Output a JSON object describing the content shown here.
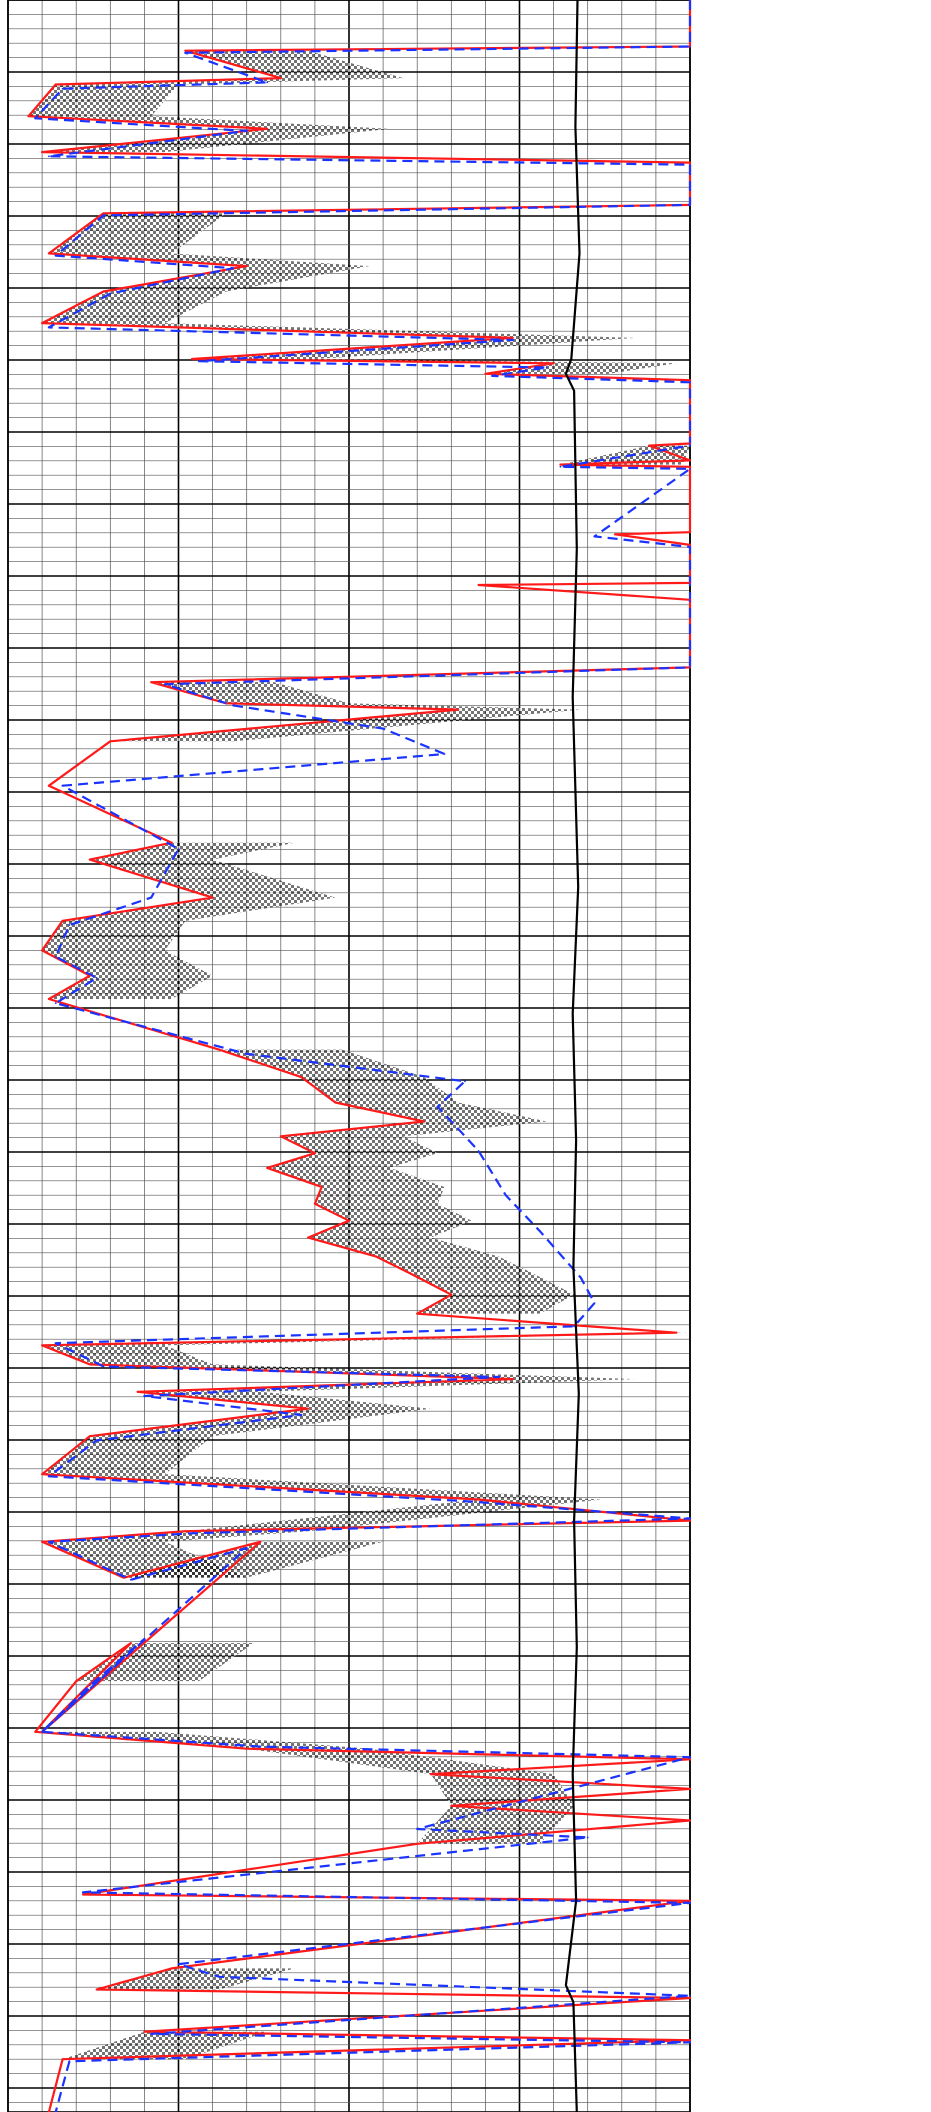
{
  "chart_data": {
    "type": "line",
    "grid": true,
    "x_scale": "linear",
    "colors": {
      "series_red": "#ff1a1a",
      "series_blue": "#1a33ff",
      "reference_curve": "#000000",
      "crossover_fill": "#808080",
      "grid_major": "#000000",
      "grid_minor": "#555555"
    },
    "series": [
      {
        "style": "solid",
        "color": "#ff1a1a",
        "points": [
          [
            1.0,
            0.0
          ],
          [
            1.0,
            0.022
          ],
          [
            0.26,
            0.024
          ],
          [
            0.4,
            0.037
          ],
          [
            0.07,
            0.04
          ],
          [
            0.03,
            0.055
          ],
          [
            0.38,
            0.061
          ],
          [
            0.05,
            0.072
          ],
          [
            1.0,
            0.077
          ],
          [
            1.0,
            0.097
          ],
          [
            0.14,
            0.101
          ],
          [
            0.06,
            0.12
          ],
          [
            0.35,
            0.126
          ],
          [
            0.14,
            0.138
          ],
          [
            0.05,
            0.153
          ],
          [
            0.74,
            0.16
          ],
          [
            0.27,
            0.17
          ],
          [
            0.8,
            0.172
          ],
          [
            0.7,
            0.177
          ],
          [
            1.0,
            0.18
          ],
          [
            1.0,
            0.21
          ],
          [
            0.94,
            0.211
          ],
          [
            1.0,
            0.218
          ],
          [
            0.81,
            0.22
          ],
          [
            1.0,
            0.221
          ],
          [
            1.0,
            0.252
          ],
          [
            0.89,
            0.253
          ],
          [
            1.0,
            0.258
          ],
          [
            1.0,
            0.276
          ],
          [
            0.69,
            0.277
          ],
          [
            1.0,
            0.284
          ],
          [
            1.0,
            0.316
          ],
          [
            0.21,
            0.323
          ],
          [
            0.32,
            0.333
          ],
          [
            0.66,
            0.336
          ],
          [
            0.15,
            0.351
          ],
          [
            0.06,
            0.372
          ],
          [
            0.24,
            0.399
          ],
          [
            0.12,
            0.407
          ],
          [
            0.3,
            0.425
          ],
          [
            0.08,
            0.436
          ],
          [
            0.05,
            0.45
          ],
          [
            0.12,
            0.462
          ],
          [
            0.06,
            0.473
          ],
          [
            0.31,
            0.497
          ],
          [
            0.43,
            0.51
          ],
          [
            0.48,
            0.522
          ],
          [
            0.61,
            0.531
          ],
          [
            0.4,
            0.538
          ],
          [
            0.45,
            0.546
          ],
          [
            0.38,
            0.553
          ],
          [
            0.46,
            0.562
          ],
          [
            0.45,
            0.57
          ],
          [
            0.5,
            0.578
          ],
          [
            0.44,
            0.586
          ],
          [
            0.54,
            0.595
          ],
          [
            0.59,
            0.603
          ],
          [
            0.65,
            0.613
          ],
          [
            0.6,
            0.622
          ],
          [
            0.98,
            0.631
          ],
          [
            0.05,
            0.637
          ],
          [
            0.12,
            0.646
          ],
          [
            0.74,
            0.653
          ],
          [
            0.19,
            0.659
          ],
          [
            0.44,
            0.667
          ],
          [
            0.12,
            0.68
          ],
          [
            0.05,
            0.698
          ],
          [
            0.69,
            0.71
          ],
          [
            1.0,
            0.72
          ],
          [
            0.26,
            0.725
          ],
          [
            0.05,
            0.73
          ],
          [
            0.17,
            0.747
          ],
          [
            0.37,
            0.73
          ],
          [
            0.05,
            0.82
          ],
          [
            0.18,
            0.778
          ],
          [
            0.1,
            0.796
          ],
          [
            0.04,
            0.82
          ],
          [
            0.35,
            0.828
          ],
          [
            1.0,
            0.833
          ],
          [
            0.62,
            0.84
          ],
          [
            1.0,
            0.847
          ],
          [
            0.65,
            0.855
          ],
          [
            1.0,
            0.862
          ],
          [
            0.6,
            0.873
          ],
          [
            0.11,
            0.897
          ],
          [
            1.0,
            0.9
          ],
          [
            0.24,
            0.932
          ],
          [
            0.13,
            0.942
          ],
          [
            1.0,
            0.946
          ],
          [
            0.2,
            0.962
          ],
          [
            1.0,
            0.966
          ],
          [
            0.08,
            0.975
          ],
          [
            0.06,
            1.0
          ]
        ]
      },
      {
        "style": "dashed",
        "color": "#1a33ff",
        "points": [
          [
            1.0,
            0.0
          ],
          [
            1.0,
            0.022
          ],
          [
            0.26,
            0.025
          ],
          [
            0.38,
            0.039
          ],
          [
            0.08,
            0.042
          ],
          [
            0.04,
            0.056
          ],
          [
            0.35,
            0.062
          ],
          [
            0.06,
            0.074
          ],
          [
            1.0,
            0.078
          ],
          [
            1.0,
            0.097
          ],
          [
            0.14,
            0.102
          ],
          [
            0.07,
            0.121
          ],
          [
            0.33,
            0.127
          ],
          [
            0.15,
            0.139
          ],
          [
            0.06,
            0.155
          ],
          [
            0.74,
            0.161
          ],
          [
            0.28,
            0.171
          ],
          [
            0.79,
            0.174
          ],
          [
            0.71,
            0.178
          ],
          [
            1.0,
            0.181
          ],
          [
            1.0,
            0.211
          ],
          [
            0.81,
            0.221
          ],
          [
            1.0,
            0.222
          ],
          [
            0.86,
            0.254
          ],
          [
            1.0,
            0.259
          ],
          [
            1.0,
            0.316
          ],
          [
            0.23,
            0.324
          ],
          [
            0.33,
            0.334
          ],
          [
            0.55,
            0.345
          ],
          [
            0.64,
            0.357
          ],
          [
            0.08,
            0.372
          ],
          [
            0.25,
            0.402
          ],
          [
            0.21,
            0.425
          ],
          [
            0.09,
            0.438
          ],
          [
            0.07,
            0.453
          ],
          [
            0.13,
            0.463
          ],
          [
            0.07,
            0.475
          ],
          [
            0.35,
            0.499
          ],
          [
            0.67,
            0.512
          ],
          [
            0.63,
            0.524
          ],
          [
            0.69,
            0.545
          ],
          [
            0.73,
            0.566
          ],
          [
            0.78,
            0.583
          ],
          [
            0.84,
            0.605
          ],
          [
            0.86,
            0.617
          ],
          [
            0.83,
            0.628
          ],
          [
            0.07,
            0.636
          ],
          [
            0.14,
            0.647
          ],
          [
            0.72,
            0.652
          ],
          [
            0.2,
            0.661
          ],
          [
            0.43,
            0.67
          ],
          [
            0.13,
            0.682
          ],
          [
            0.06,
            0.699
          ],
          [
            0.68,
            0.711
          ],
          [
            1.0,
            0.719
          ],
          [
            0.27,
            0.726
          ],
          [
            0.06,
            0.73
          ],
          [
            0.18,
            0.748
          ],
          [
            0.35,
            0.733
          ],
          [
            0.05,
            0.82
          ],
          [
            0.2,
            0.776
          ],
          [
            0.12,
            0.798
          ],
          [
            0.05,
            0.82
          ],
          [
            0.37,
            0.827
          ],
          [
            1.0,
            0.832
          ],
          [
            0.6,
            0.866
          ],
          [
            0.85,
            0.87
          ],
          [
            0.11,
            0.896
          ],
          [
            1.0,
            0.901
          ],
          [
            0.25,
            0.93
          ],
          [
            0.31,
            0.936
          ],
          [
            1.0,
            0.945
          ],
          [
            0.21,
            0.963
          ],
          [
            1.0,
            0.967
          ],
          [
            0.09,
            0.976
          ],
          [
            0.07,
            1.0
          ]
        ]
      },
      {
        "style": "solid",
        "color": "#000000",
        "points": [
          [
            0.835,
            0.0
          ],
          [
            0.832,
            0.06
          ],
          [
            0.838,
            0.12
          ],
          [
            0.826,
            0.17
          ],
          [
            0.818,
            0.177
          ],
          [
            0.83,
            0.185
          ],
          [
            0.834,
            0.26
          ],
          [
            0.828,
            0.33
          ],
          [
            0.836,
            0.42
          ],
          [
            0.828,
            0.48
          ],
          [
            0.833,
            0.54
          ],
          [
            0.829,
            0.6
          ],
          [
            0.837,
            0.66
          ],
          [
            0.83,
            0.72
          ],
          [
            0.834,
            0.78
          ],
          [
            0.828,
            0.84
          ],
          [
            0.833,
            0.9
          ],
          [
            0.818,
            0.94
          ],
          [
            0.829,
            0.948
          ],
          [
            0.834,
            1.0
          ]
        ]
      }
    ]
  }
}
